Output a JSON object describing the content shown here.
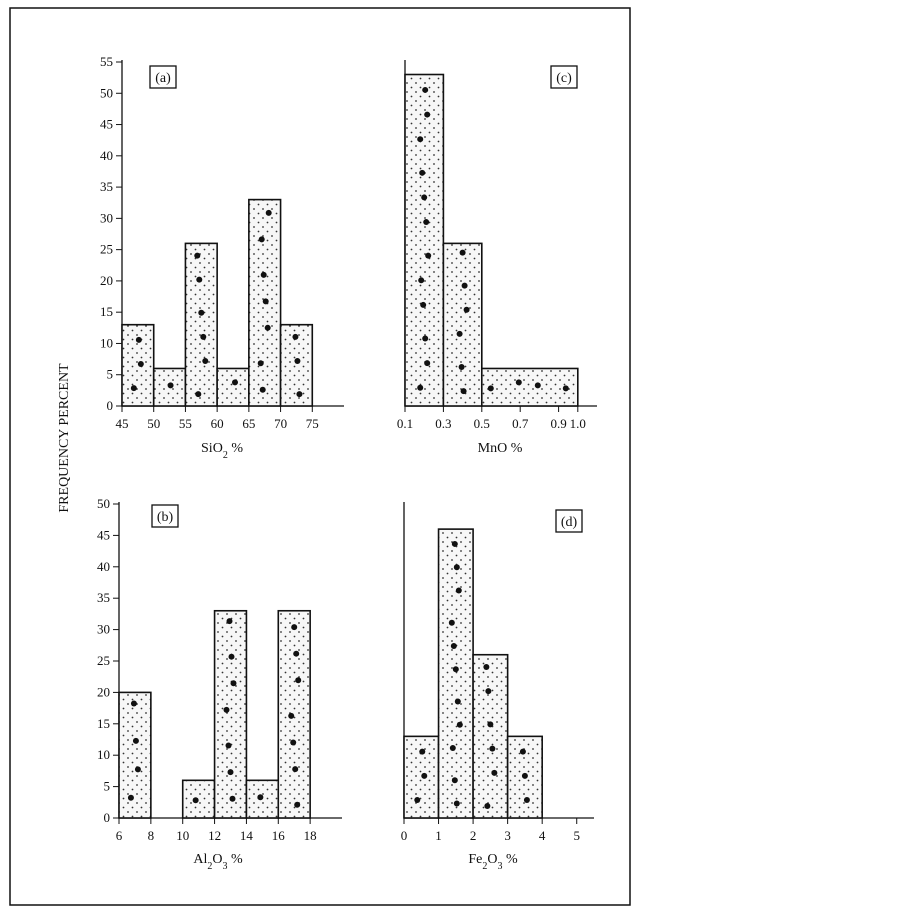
{
  "figure": {
    "ylabel": "FREQUENCY PERCENT",
    "fill_color": "#f7f7f7",
    "line_color": "#111111"
  },
  "chart_data": [
    {
      "type": "bar",
      "id": "a",
      "panel_label": "(a)",
      "title": "",
      "xlabel_main": "SiO",
      "xlabel_sub": "2",
      "xlabel_suffix": " %",
      "bins": [
        [
          45,
          50
        ],
        [
          50,
          55
        ],
        [
          55,
          60
        ],
        [
          60,
          65
        ],
        [
          65,
          70
        ],
        [
          70,
          75
        ]
      ],
      "values": [
        13,
        6,
        26,
        6,
        33,
        13
      ],
      "xlim": [
        45,
        80
      ],
      "ylim": [
        0,
        55
      ],
      "xticks": [
        45,
        50,
        55,
        60,
        65,
        70,
        75
      ],
      "xtick_labels": [
        "45",
        "50",
        "55",
        "60",
        "65",
        "70",
        "75"
      ],
      "yticks": [
        0,
        5,
        10,
        15,
        20,
        25,
        30,
        35,
        40,
        45,
        50,
        55
      ],
      "ytick_labels": [
        "0",
        "5",
        "10",
        "15",
        "20",
        "25",
        "30",
        "35",
        "40",
        "45",
        "50",
        "55"
      ]
    },
    {
      "type": "bar",
      "id": "c",
      "panel_label": "(c)",
      "title": "",
      "xlabel_main": "MnO",
      "xlabel_sub": "",
      "xlabel_suffix": " %",
      "bins": [
        [
          0.1,
          0.3
        ],
        [
          0.3,
          0.5
        ],
        [
          0.5,
          1.0
        ]
      ],
      "values": [
        53,
        26,
        6
      ],
      "xlim": [
        0.1,
        1.1
      ],
      "ylim": [
        0,
        55
      ],
      "xticks": [
        0.1,
        0.3,
        0.5,
        0.7,
        0.9,
        1.0
      ],
      "xtick_labels": [
        "0.1",
        "0.3",
        "0.5",
        "0.7",
        "0.9",
        "1.0"
      ],
      "yticks": [],
      "ytick_labels": []
    },
    {
      "type": "bar",
      "id": "b",
      "panel_label": "(b)",
      "title": "",
      "xlabel_main": "Al",
      "xlabel_sub": "2",
      "xlabel_main2": "O",
      "xlabel_sub2": "3",
      "xlabel_suffix": " %",
      "bins": [
        [
          6,
          8
        ],
        [
          8,
          10
        ],
        [
          10,
          12
        ],
        [
          12,
          14
        ],
        [
          14,
          16
        ],
        [
          16,
          18
        ]
      ],
      "values": [
        20,
        0,
        6,
        33,
        6,
        33
      ],
      "xlim": [
        6,
        20
      ],
      "ylim": [
        0,
        50
      ],
      "xticks": [
        6,
        8,
        10,
        12,
        14,
        16,
        18
      ],
      "xtick_labels": [
        "6",
        "8",
        "10",
        "12",
        "14",
        "16",
        "18"
      ],
      "yticks": [
        0,
        5,
        10,
        15,
        20,
        25,
        30,
        35,
        40,
        45,
        50
      ],
      "ytick_labels": [
        "0",
        "5",
        "10",
        "15",
        "20",
        "25",
        "30",
        "35",
        "40",
        "45",
        "50"
      ]
    },
    {
      "type": "bar",
      "id": "d",
      "panel_label": "(d)",
      "title": "",
      "xlabel_main": "Fe",
      "xlabel_sub": "2",
      "xlabel_main2": "O",
      "xlabel_sub2": "3",
      "xlabel_suffix": " %",
      "bins": [
        [
          0,
          1
        ],
        [
          1,
          2
        ],
        [
          2,
          3
        ],
        [
          3,
          4
        ]
      ],
      "values": [
        13,
        46,
        26,
        13
      ],
      "xlim": [
        0,
        5.5
      ],
      "ylim": [
        0,
        50
      ],
      "xticks": [
        0,
        1,
        2,
        3,
        4,
        5
      ],
      "xtick_labels": [
        "0",
        "1",
        "2",
        "3",
        "4",
        "5"
      ],
      "yticks": [],
      "ytick_labels": []
    }
  ]
}
